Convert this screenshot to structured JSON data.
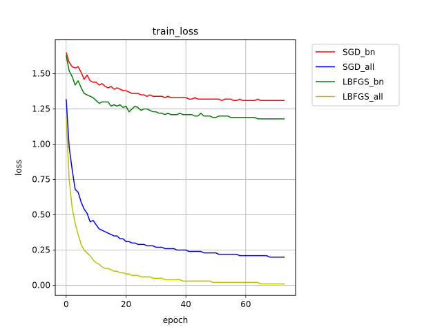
{
  "chart_data": {
    "type": "line",
    "title": "train_loss",
    "xlabel": "epoch",
    "ylabel": "loss",
    "xlim": [
      -3.65,
      76.65
    ],
    "ylim": [
      -0.072,
      1.74
    ],
    "x_ticks": [
      0,
      20,
      40,
      60
    ],
    "x_tick_labels": [
      "0",
      "20",
      "40",
      "60"
    ],
    "y_ticks": [
      0,
      0.25,
      0.5,
      0.75,
      1.0,
      1.25,
      1.5
    ],
    "y_tick_labels": [
      "0.00",
      "0.25",
      "0.50",
      "0.75",
      "1.00",
      "1.25",
      "1.50"
    ],
    "grid": true,
    "legend_position": "outside-right",
    "x": [
      0,
      1,
      2,
      3,
      4,
      5,
      6,
      7,
      8,
      9,
      10,
      11,
      12,
      13,
      14,
      15,
      16,
      17,
      18,
      19,
      20,
      21,
      22,
      23,
      24,
      25,
      26,
      27,
      28,
      29,
      30,
      31,
      32,
      33,
      34,
      35,
      36,
      37,
      38,
      39,
      40,
      41,
      42,
      43,
      44,
      45,
      46,
      47,
      48,
      49,
      50,
      51,
      52,
      53,
      54,
      55,
      56,
      57,
      58,
      59,
      60,
      61,
      62,
      63,
      64,
      65,
      66,
      67,
      68,
      69,
      70,
      71,
      72,
      73
    ],
    "series": [
      {
        "name": "SGD_bn",
        "color": "#ff0000",
        "values": [
          1.65,
          1.58,
          1.55,
          1.54,
          1.55,
          1.51,
          1.46,
          1.49,
          1.45,
          1.44,
          1.44,
          1.42,
          1.43,
          1.41,
          1.4,
          1.41,
          1.39,
          1.4,
          1.39,
          1.38,
          1.38,
          1.37,
          1.36,
          1.36,
          1.36,
          1.35,
          1.35,
          1.34,
          1.35,
          1.34,
          1.34,
          1.34,
          1.34,
          1.33,
          1.34,
          1.33,
          1.33,
          1.33,
          1.33,
          1.33,
          1.33,
          1.32,
          1.32,
          1.33,
          1.32,
          1.32,
          1.32,
          1.32,
          1.32,
          1.32,
          1.32,
          1.32,
          1.31,
          1.32,
          1.32,
          1.32,
          1.31,
          1.31,
          1.32,
          1.31,
          1.31,
          1.31,
          1.31,
          1.31,
          1.32,
          1.31,
          1.31,
          1.31,
          1.31,
          1.31,
          1.31,
          1.31,
          1.31,
          1.31
        ]
      },
      {
        "name": "SGD_all",
        "color": "#0000ff",
        "values": [
          1.32,
          0.98,
          0.82,
          0.68,
          0.66,
          0.59,
          0.54,
          0.51,
          0.45,
          0.46,
          0.43,
          0.4,
          0.39,
          0.38,
          0.37,
          0.36,
          0.35,
          0.35,
          0.33,
          0.33,
          0.31,
          0.31,
          0.3,
          0.3,
          0.29,
          0.29,
          0.29,
          0.28,
          0.28,
          0.28,
          0.27,
          0.27,
          0.27,
          0.26,
          0.26,
          0.26,
          0.26,
          0.25,
          0.25,
          0.25,
          0.25,
          0.24,
          0.24,
          0.24,
          0.24,
          0.24,
          0.23,
          0.23,
          0.23,
          0.23,
          0.23,
          0.22,
          0.22,
          0.22,
          0.22,
          0.22,
          0.22,
          0.22,
          0.21,
          0.21,
          0.21,
          0.21,
          0.21,
          0.21,
          0.21,
          0.21,
          0.21,
          0.21,
          0.2,
          0.2,
          0.2,
          0.2,
          0.2,
          0.2
        ]
      },
      {
        "name": "LBFGS_bn",
        "color": "#008000",
        "values": [
          1.63,
          1.52,
          1.48,
          1.42,
          1.45,
          1.4,
          1.36,
          1.35,
          1.34,
          1.33,
          1.31,
          1.29,
          1.3,
          1.3,
          1.3,
          1.27,
          1.28,
          1.27,
          1.28,
          1.26,
          1.27,
          1.23,
          1.25,
          1.27,
          1.26,
          1.24,
          1.25,
          1.25,
          1.24,
          1.23,
          1.23,
          1.22,
          1.22,
          1.21,
          1.22,
          1.21,
          1.21,
          1.21,
          1.22,
          1.21,
          1.21,
          1.21,
          1.21,
          1.2,
          1.2,
          1.22,
          1.2,
          1.2,
          1.2,
          1.19,
          1.19,
          1.2,
          1.2,
          1.2,
          1.2,
          1.19,
          1.19,
          1.19,
          1.19,
          1.19,
          1.19,
          1.19,
          1.19,
          1.19,
          1.18,
          1.18,
          1.18,
          1.18,
          1.18,
          1.18,
          1.18,
          1.18,
          1.18,
          1.18
        ]
      },
      {
        "name": "LBFGS_all",
        "color": "#bfbf00",
        "values": [
          1.2,
          0.75,
          0.55,
          0.44,
          0.36,
          0.29,
          0.25,
          0.23,
          0.21,
          0.18,
          0.16,
          0.15,
          0.13,
          0.12,
          0.12,
          0.11,
          0.1,
          0.1,
          0.09,
          0.09,
          0.08,
          0.08,
          0.07,
          0.07,
          0.07,
          0.06,
          0.06,
          0.06,
          0.06,
          0.05,
          0.05,
          0.05,
          0.05,
          0.04,
          0.04,
          0.04,
          0.04,
          0.04,
          0.04,
          0.03,
          0.03,
          0.03,
          0.03,
          0.03,
          0.03,
          0.03,
          0.03,
          0.03,
          0.03,
          0.02,
          0.02,
          0.02,
          0.02,
          0.02,
          0.02,
          0.02,
          0.02,
          0.02,
          0.02,
          0.02,
          0.02,
          0.02,
          0.02,
          0.02,
          0.02,
          0.01,
          0.01,
          0.01,
          0.01,
          0.01,
          0.01,
          0.01,
          0.01,
          0.01
        ]
      }
    ]
  }
}
